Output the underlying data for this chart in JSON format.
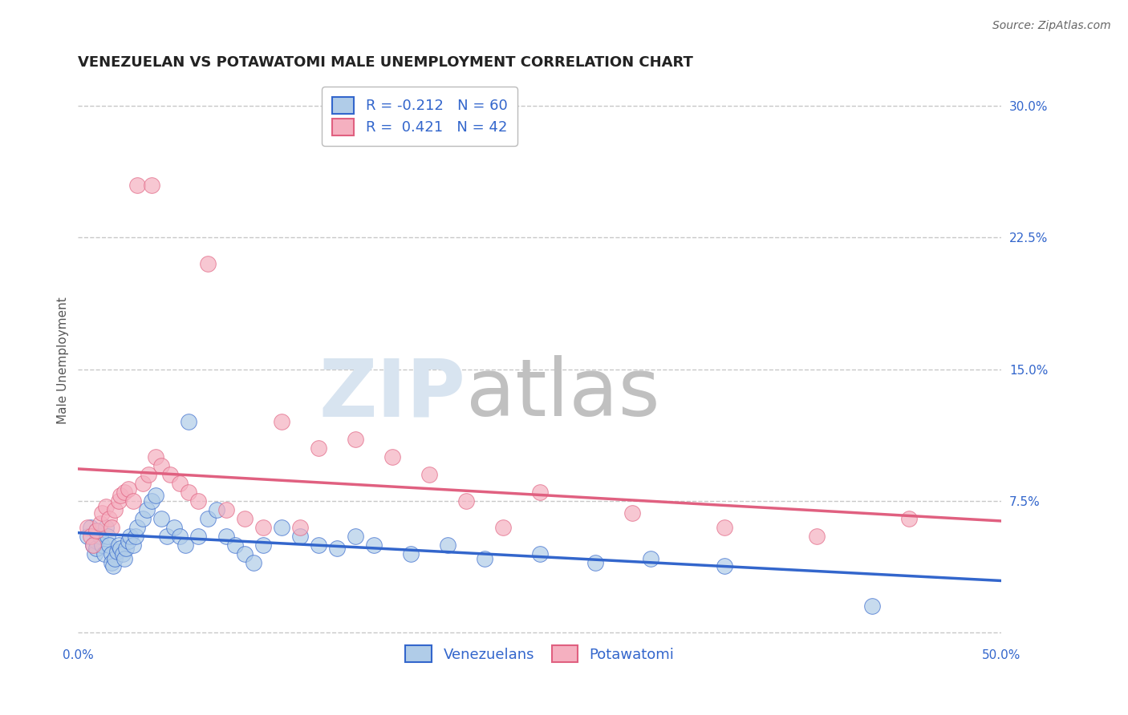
{
  "title": "VENEZUELAN VS POTAWATOMI MALE UNEMPLOYMENT CORRELATION CHART",
  "source": "Source: ZipAtlas.com",
  "ylabel": "Male Unemployment",
  "xlim": [
    0.0,
    0.5
  ],
  "ylim": [
    -0.005,
    0.315
  ],
  "xticks": [
    0.0,
    0.1,
    0.2,
    0.3,
    0.4,
    0.5
  ],
  "ytick_positions": [
    0.0,
    0.075,
    0.15,
    0.225,
    0.3
  ],
  "ytick_labels": [
    "",
    "7.5%",
    "15.0%",
    "22.5%",
    "30.0%"
  ],
  "xtick_labels": [
    "0.0%",
    "",
    "",
    "",
    "",
    "50.0%"
  ],
  "grid_color": "#c8c8c8",
  "background_color": "#ffffff",
  "venezuelan_color": "#b0cce8",
  "potawatomi_color": "#f5b0c0",
  "venezuelan_line_color": "#3366cc",
  "potawatomi_line_color": "#e06080",
  "R_venezuelan": -0.212,
  "N_venezuelan": 60,
  "R_potawatomi": 0.421,
  "N_potawatomi": 42,
  "venezuelan_x": [
    0.005,
    0.007,
    0.008,
    0.009,
    0.01,
    0.01,
    0.01,
    0.012,
    0.013,
    0.014,
    0.015,
    0.016,
    0.017,
    0.018,
    0.018,
    0.019,
    0.02,
    0.021,
    0.022,
    0.023,
    0.024,
    0.025,
    0.026,
    0.027,
    0.028,
    0.03,
    0.031,
    0.032,
    0.035,
    0.037,
    0.04,
    0.042,
    0.045,
    0.048,
    0.052,
    0.055,
    0.058,
    0.06,
    0.065,
    0.07,
    0.075,
    0.08,
    0.085,
    0.09,
    0.095,
    0.1,
    0.11,
    0.12,
    0.13,
    0.14,
    0.15,
    0.16,
    0.18,
    0.2,
    0.22,
    0.25,
    0.28,
    0.31,
    0.35,
    0.43
  ],
  "venezuelan_y": [
    0.055,
    0.06,
    0.05,
    0.045,
    0.058,
    0.052,
    0.048,
    0.055,
    0.05,
    0.045,
    0.06,
    0.055,
    0.05,
    0.045,
    0.04,
    0.038,
    0.042,
    0.046,
    0.05,
    0.048,
    0.045,
    0.042,
    0.048,
    0.052,
    0.055,
    0.05,
    0.055,
    0.06,
    0.065,
    0.07,
    0.075,
    0.078,
    0.065,
    0.055,
    0.06,
    0.055,
    0.05,
    0.12,
    0.055,
    0.065,
    0.07,
    0.055,
    0.05,
    0.045,
    0.04,
    0.05,
    0.06,
    0.055,
    0.05,
    0.048,
    0.055,
    0.05,
    0.045,
    0.05,
    0.042,
    0.045,
    0.04,
    0.042,
    0.038,
    0.015
  ],
  "potawatomi_x": [
    0.005,
    0.007,
    0.008,
    0.01,
    0.012,
    0.013,
    0.015,
    0.017,
    0.018,
    0.02,
    0.022,
    0.023,
    0.025,
    0.027,
    0.03,
    0.032,
    0.035,
    0.038,
    0.04,
    0.042,
    0.045,
    0.05,
    0.055,
    0.06,
    0.065,
    0.07,
    0.08,
    0.09,
    0.1,
    0.11,
    0.12,
    0.13,
    0.15,
    0.17,
    0.19,
    0.21,
    0.23,
    0.25,
    0.3,
    0.35,
    0.4,
    0.45
  ],
  "potawatomi_y": [
    0.06,
    0.055,
    0.05,
    0.058,
    0.062,
    0.068,
    0.072,
    0.065,
    0.06,
    0.07,
    0.075,
    0.078,
    0.08,
    0.082,
    0.075,
    0.255,
    0.085,
    0.09,
    0.255,
    0.1,
    0.095,
    0.09,
    0.085,
    0.08,
    0.075,
    0.21,
    0.07,
    0.065,
    0.06,
    0.12,
    0.06,
    0.105,
    0.11,
    0.1,
    0.09,
    0.075,
    0.06,
    0.08,
    0.068,
    0.06,
    0.055,
    0.065
  ],
  "watermark_zip": "ZIP",
  "watermark_atlas": "atlas",
  "watermark_color": "#d8e4f0",
  "watermark_atlas_color": "#c0c0c0",
  "legend_fontsize": 13,
  "title_fontsize": 13,
  "label_fontsize": 11,
  "tick_fontsize": 11
}
